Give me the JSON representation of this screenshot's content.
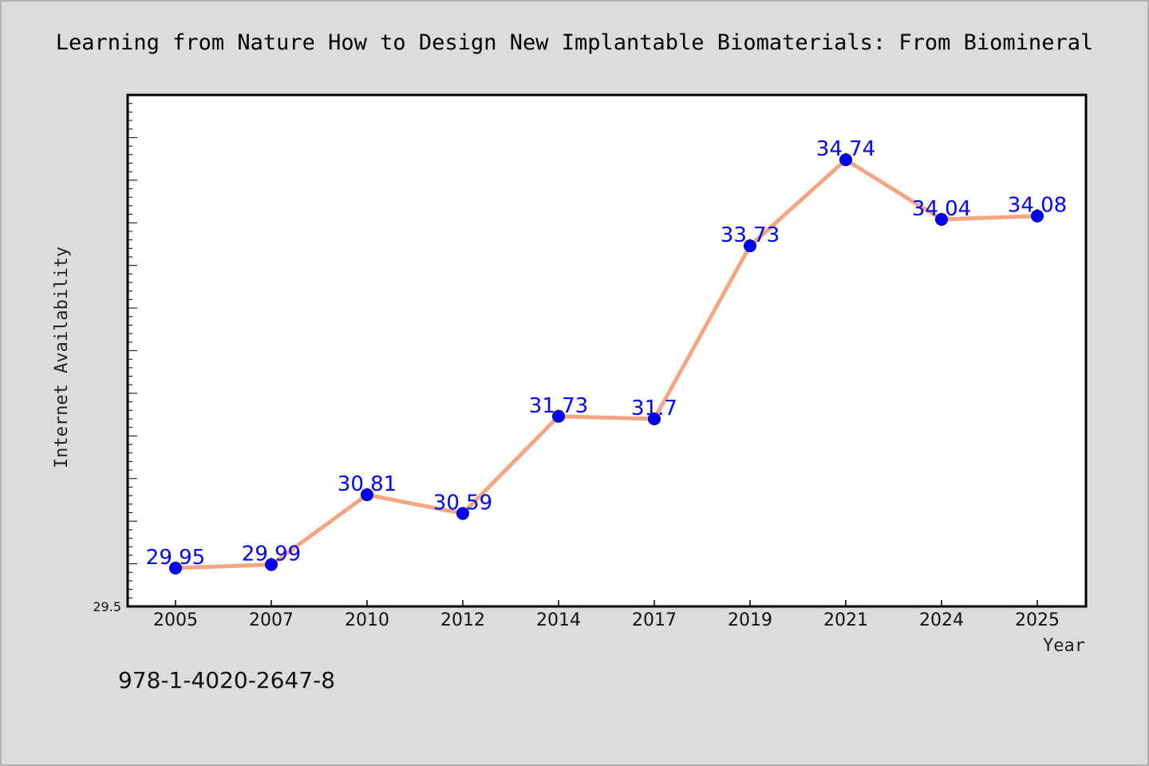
{
  "chart_data": {
    "type": "line",
    "title": "Learning from Nature How to Design New Implantable Biomaterials: From Biomineral",
    "xlabel": "Year",
    "ylabel": "Internet Availability",
    "categories": [
      "2005",
      "2007",
      "2010",
      "2012",
      "2014",
      "2017",
      "2019",
      "2021",
      "2024",
      "2025"
    ],
    "values": [
      29.95,
      29.99,
      30.81,
      30.59,
      31.73,
      31.7,
      33.73,
      34.74,
      34.04,
      34.08
    ],
    "data_labels": [
      "29.95",
      "29.99",
      "30.81",
      "30.59",
      "31.73",
      "31.7",
      "33.73",
      "34.74",
      "34.04",
      "34.08"
    ],
    "ylim": [
      29.5,
      35.5
    ],
    "yticks_labeled": [
      "29.5"
    ],
    "grid": false,
    "line_color": "#f4a582",
    "marker_color": "#0000ff",
    "label_color": "#0000ff"
  },
  "footer": {
    "text": "978-1-4020-2647-8"
  }
}
